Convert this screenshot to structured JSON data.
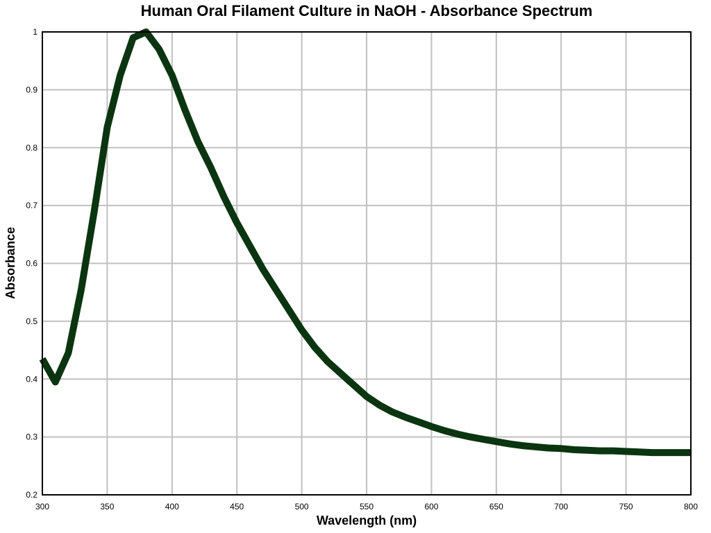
{
  "chart_data": {
    "type": "line",
    "title": "Human Oral Filament Culture in NaOH - Absorbance Spectrum",
    "xlabel": "Wavelength (nm)",
    "ylabel": "Absorbance",
    "xlim": [
      300,
      800
    ],
    "ylim": [
      0.2,
      1.0
    ],
    "x_ticks": [
      300,
      350,
      400,
      450,
      500,
      550,
      600,
      650,
      700,
      750,
      800
    ],
    "y_ticks": [
      0.2,
      0.3,
      0.4,
      0.5,
      0.6,
      0.7,
      0.8,
      0.9,
      1
    ],
    "grid": true,
    "series": [
      {
        "color": "#0b3510",
        "x": [
          300,
          310,
          320,
          330,
          340,
          350,
          360,
          370,
          380,
          390,
          400,
          410,
          420,
          430,
          440,
          450,
          460,
          470,
          480,
          490,
          500,
          510,
          520,
          530,
          540,
          550,
          560,
          570,
          580,
          590,
          600,
          610,
          620,
          630,
          640,
          650,
          660,
          670,
          680,
          690,
          700,
          710,
          720,
          730,
          740,
          750,
          760,
          770,
          780,
          790,
          800
        ],
        "values": [
          0.435,
          0.395,
          0.445,
          0.555,
          0.69,
          0.835,
          0.925,
          0.99,
          1.0,
          0.97,
          0.925,
          0.865,
          0.81,
          0.765,
          0.715,
          0.67,
          0.63,
          0.59,
          0.555,
          0.52,
          0.485,
          0.455,
          0.43,
          0.41,
          0.39,
          0.37,
          0.355,
          0.343,
          0.334,
          0.326,
          0.318,
          0.311,
          0.305,
          0.3,
          0.296,
          0.292,
          0.288,
          0.285,
          0.283,
          0.281,
          0.28,
          0.278,
          0.277,
          0.276,
          0.276,
          0.275,
          0.274,
          0.273,
          0.273,
          0.273,
          0.273
        ]
      }
    ]
  }
}
